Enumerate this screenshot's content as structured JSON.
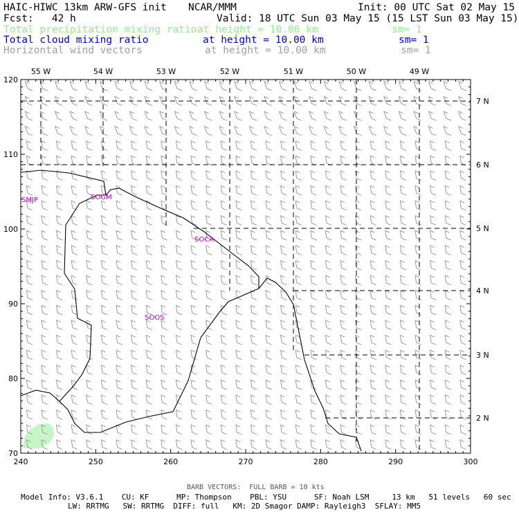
{
  "header": {
    "title_left": "HAIC-HIWC 13km ARW-GFS init",
    "title_center": "NCAR/MMM",
    "init_time": "Init: 00 UTC Sat 02 May 15",
    "forecast": "Fcst:   42 h",
    "valid_time": "Valid: 18 UTC Sun 03 May 15 (15 LST Sun 03 May 15)"
  },
  "fields": [
    {
      "name": "Total precipitation mixing ratio",
      "height": "at height = 10.00 km",
      "sm": "sm= 1",
      "color": "#90ee90"
    },
    {
      "name": "Total cloud mixing ratio",
      "height": "at height = 10.00 km",
      "sm": "sm= 1",
      "color": "#0000c8"
    },
    {
      "name": "Horizontal wind vectors",
      "height": "at height = 10.00 km",
      "sm": "sm= 1",
      "color": "#a0a0a0"
    }
  ],
  "map": {
    "x_grid_ticks": [
      "240",
      "250",
      "260",
      "270",
      "280",
      "290",
      "300"
    ],
    "y_grid_ticks": [
      "70",
      "80",
      "90",
      "100",
      "110",
      "120"
    ],
    "lon_labels": [
      "55 W",
      "54 W",
      "53 W",
      "52 W",
      "51 W",
      "50 W",
      "49 W"
    ],
    "lat_labels": [
      "7 N",
      "6 N",
      "5 N",
      "4 N",
      "3 N",
      "2 N"
    ],
    "stations": [
      "SMJP",
      "SOGM",
      "SOCA",
      "SOOS"
    ],
    "coast_color": "#000000",
    "precip_color": "#c8f5c8"
  },
  "footer": {
    "barb_note": "BARB VECTORS:  FULL BARB = 10 kts",
    "model_line1": "Model Info: V3.6.1    CU: KF      MP: Thompson    PBL: YSU      SF: Noah LSM     13 km   51 levels   60 sec",
    "model_line2": "LW: RRTMG   SW: RRTMG  DIFF: full   KM: 2D Smagor DAMP: Rayleigh3  SFLAY: MM5"
  }
}
